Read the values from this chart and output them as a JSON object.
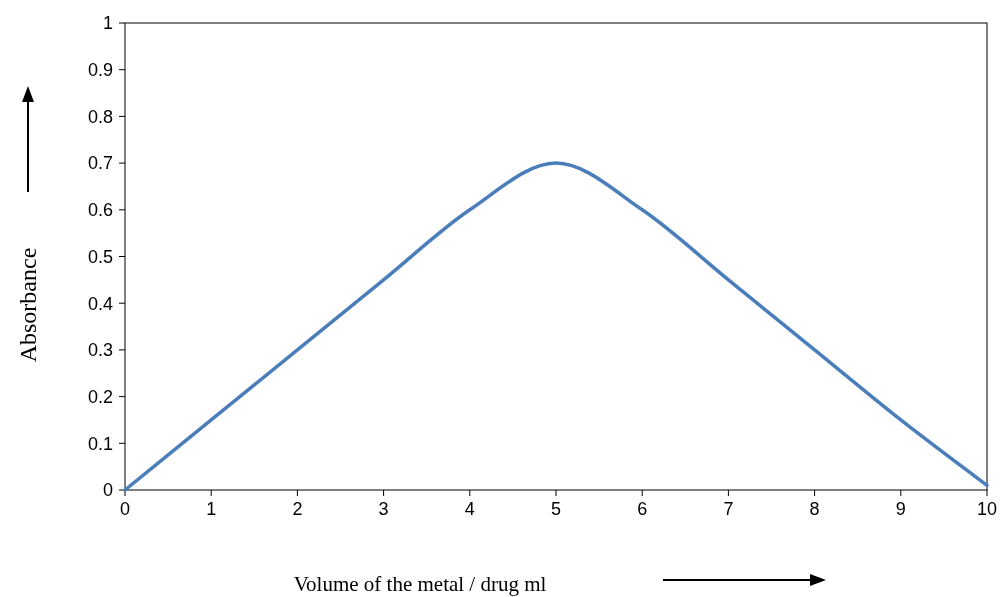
{
  "chart_data": {
    "type": "line",
    "xlabel": "Volume of the metal / drug ml",
    "ylabel": "Absorbance",
    "x": [
      0,
      1,
      2,
      3,
      4,
      5,
      6,
      7,
      8,
      9,
      10
    ],
    "series": [
      {
        "color": "#4a7ebb",
        "values": [
          0,
          0.15,
          0.3,
          0.45,
          0.6,
          0.7,
          0.6,
          0.45,
          0.3,
          0.15,
          0.01
        ]
      }
    ],
    "xlim": [
      0,
      10
    ],
    "xticks": [
      0,
      1,
      2,
      3,
      4,
      5,
      6,
      7,
      8,
      9,
      10
    ],
    "ylim": [
      0,
      1
    ],
    "yticks": [
      0,
      0.1,
      0.2,
      0.3,
      0.4,
      0.5,
      0.6,
      0.7,
      0.8,
      0.9,
      1
    ],
    "grid": false,
    "marker": "none",
    "line_style": "solid"
  }
}
